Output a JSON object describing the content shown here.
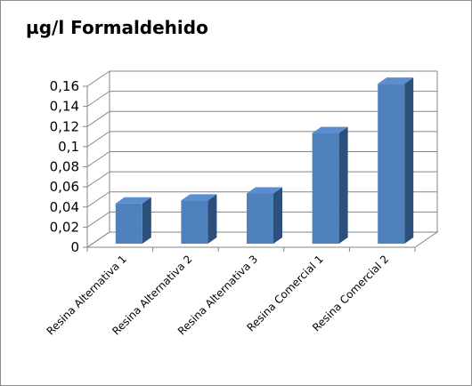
{
  "chart_data": {
    "type": "bar",
    "title": "µg/l Formaldehido",
    "categories": [
      "Resina Alternativa 1",
      "Resina Alternativa 2",
      "Resina Alternativa 3",
      "Resina Comercial 1",
      "Resina Comercial 2"
    ],
    "values": [
      0.04,
      0.043,
      0.05,
      0.11,
      0.159
    ],
    "yticks": [
      "0",
      "0,02",
      "0,04",
      "0,06",
      "0,08",
      "0,1",
      "0,12",
      "0,14",
      "0,16"
    ],
    "ylim": [
      0,
      0.16
    ],
    "grid": true,
    "legend": "none",
    "bar_color": "#4f81bd"
  }
}
